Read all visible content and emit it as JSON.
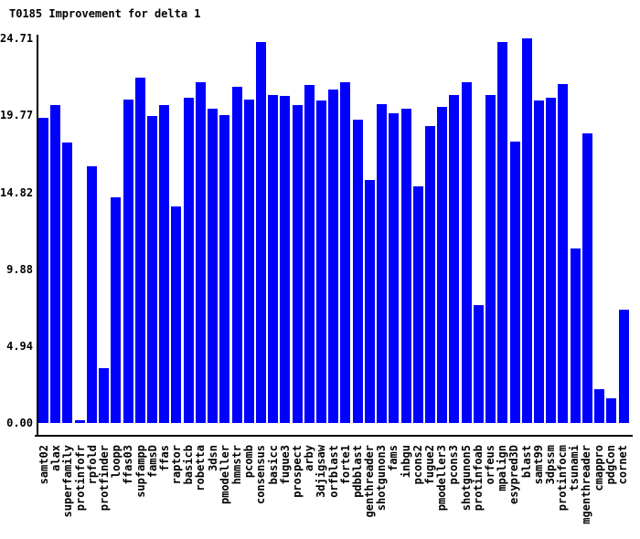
{
  "title": "T0185 Improvement for delta 1",
  "chart_data": {
    "type": "bar",
    "title": "T0185 Improvement for delta 1",
    "xlabel": "",
    "ylabel": "",
    "bar_color": "#0000ff",
    "background_color": "#ffffff",
    "grid": false,
    "legend": false,
    "ylim": [
      0,
      24.71
    ],
    "yticks": [
      0,
      4.94,
      9.88,
      14.82,
      19.77,
      24.71
    ],
    "ytick_labels": [
      "0.00",
      "4.94",
      "9.88",
      "14.82",
      "19.77",
      "24.71"
    ],
    "categories": [
      "samt02",
      "alax",
      "superfamily",
      "protinfofr",
      "rpfold",
      "protfinder",
      "loopp",
      "ffas03",
      "supfampp",
      "famsD",
      "ffas",
      "raptor",
      "basicb",
      "robetta",
      "3dsn",
      "pmodeller",
      "hmmstr",
      "pcomb",
      "consensus",
      "basicc",
      "fugue3",
      "prospect",
      "arby",
      "3djigsaw",
      "orfblast",
      "forte1",
      "pdbblast",
      "genthreader",
      "shotgunon3",
      "fams",
      "inbgu",
      "pcons2",
      "fugue2",
      "pmodeller3",
      "pcons3",
      "shotgunon5",
      "protinfoab",
      "orfeus",
      "mpalign",
      "esypred3D",
      "blast",
      "samt99",
      "3dpssm",
      "protinfocm",
      "tsunami",
      "mgenthreader",
      "cmappro",
      "pdgCon",
      "cornet"
    ],
    "values": [
      19.6,
      20.4,
      18.0,
      0.15,
      16.5,
      3.5,
      14.5,
      20.8,
      22.2,
      19.7,
      20.4,
      13.9,
      20.9,
      21.9,
      20.2,
      19.8,
      21.6,
      20.8,
      24.5,
      21.1,
      21.0,
      20.4,
      21.7,
      20.7,
      21.4,
      21.9,
      19.5,
      15.6,
      20.5,
      19.9,
      20.2,
      15.2,
      19.1,
      20.3,
      21.1,
      21.9,
      7.6,
      21.1,
      24.5,
      18.1,
      24.71,
      20.7,
      20.9,
      21.8,
      11.2,
      18.6,
      2.2,
      1.6,
      7.3
    ]
  }
}
